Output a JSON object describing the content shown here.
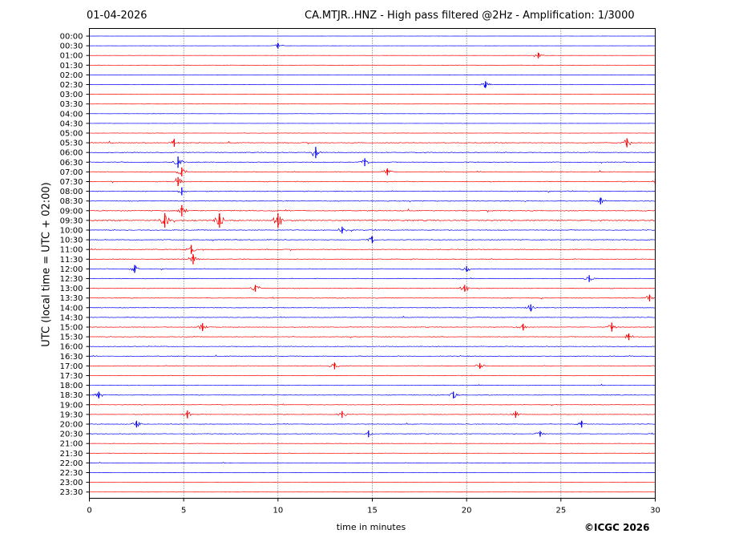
{
  "header": {
    "date": "01-04-2026",
    "title": "CA.MTJR..HNZ - High pass filtered @2Hz - Amplification: 1/3000"
  },
  "footer": {
    "copyright": "©ICGC 2026"
  },
  "colors": {
    "blue": "#0000ff",
    "red": "#ff0000",
    "frame": "#000000",
    "grid": "#000000",
    "background": "#ffffff"
  },
  "chart_data": {
    "type": "line",
    "xlabel": "time in minutes",
    "ylabel": "UTC (local time = UTC + 02:00)",
    "xlim": [
      0,
      30
    ],
    "xticks": [
      0,
      5,
      10,
      15,
      20,
      25,
      30
    ],
    "vertical_gridlines_at": [
      5,
      10,
      15,
      20,
      25
    ],
    "grid": "vertical dotted",
    "trace_colors_cycle": [
      "blue",
      "blue",
      "red",
      "red"
    ],
    "rows": [
      "00:00",
      "00:30",
      "01:00",
      "01:30",
      "02:00",
      "02:30",
      "03:00",
      "03:30",
      "04:00",
      "04:30",
      "05:00",
      "05:30",
      "06:00",
      "06:30",
      "07:00",
      "07:30",
      "08:00",
      "08:30",
      "09:00",
      "09:30",
      "10:00",
      "10:30",
      "11:00",
      "11:30",
      "12:00",
      "12:30",
      "13:00",
      "13:30",
      "14:00",
      "14:30",
      "15:00",
      "15:30",
      "16:00",
      "16:30",
      "17:00",
      "17:30",
      "18:00",
      "18:30",
      "19:00",
      "19:30",
      "20:00",
      "20:30",
      "21:00",
      "21:30",
      "22:00",
      "22:30",
      "23:00",
      "23:30"
    ],
    "trace_activity": [
      0.1,
      0.15,
      0.15,
      0.2,
      0.2,
      0.3,
      0.15,
      0.2,
      0.2,
      0.2,
      0.3,
      0.6,
      0.6,
      0.6,
      0.6,
      0.6,
      0.6,
      0.6,
      0.7,
      1.0,
      0.6,
      0.6,
      0.6,
      0.6,
      0.5,
      0.5,
      0.5,
      0.5,
      0.5,
      0.5,
      0.5,
      0.5,
      0.5,
      0.5,
      0.5,
      0.5,
      0.45,
      0.45,
      0.45,
      0.45,
      0.45,
      0.45,
      0.3,
      0.3,
      0.3,
      0.3,
      0.15,
      0.15
    ],
    "events": [
      {
        "row": "00:30",
        "minute": 10.0,
        "amp": 0.5
      },
      {
        "row": "01:00",
        "minute": 23.8,
        "amp": 0.5
      },
      {
        "row": "02:30",
        "minute": 21.0,
        "amp": 0.6
      },
      {
        "row": "05:30",
        "minute": 4.5,
        "amp": 0.7
      },
      {
        "row": "05:30",
        "minute": 28.5,
        "amp": 0.8
      },
      {
        "row": "06:00",
        "minute": 12.0,
        "amp": 1.0
      },
      {
        "row": "06:30",
        "minute": 4.7,
        "amp": 1.0
      },
      {
        "row": "06:30",
        "minute": 14.6,
        "amp": 0.7
      },
      {
        "row": "07:00",
        "minute": 4.9,
        "amp": 0.8
      },
      {
        "row": "07:00",
        "minute": 15.8,
        "amp": 0.6
      },
      {
        "row": "07:30",
        "minute": 4.7,
        "amp": 0.8
      },
      {
        "row": "07:30",
        "minute": 30.0,
        "amp": 0.5
      },
      {
        "row": "08:00",
        "minute": 4.9,
        "amp": 0.7
      },
      {
        "row": "08:30",
        "minute": 27.1,
        "amp": 0.6
      },
      {
        "row": "09:00",
        "minute": 4.9,
        "amp": 1.0
      },
      {
        "row": "09:30",
        "minute": 4.0,
        "amp": 1.3
      },
      {
        "row": "09:30",
        "minute": 6.9,
        "amp": 1.5
      },
      {
        "row": "09:30",
        "minute": 10.0,
        "amp": 1.3
      },
      {
        "row": "10:00",
        "minute": 13.4,
        "amp": 0.6
      },
      {
        "row": "10:30",
        "minute": 15.0,
        "amp": 0.6
      },
      {
        "row": "11:00",
        "minute": 5.4,
        "amp": 0.8
      },
      {
        "row": "11:30",
        "minute": 5.5,
        "amp": 0.9
      },
      {
        "row": "12:00",
        "minute": 2.4,
        "amp": 0.7
      },
      {
        "row": "12:00",
        "minute": 20.0,
        "amp": 0.5
      },
      {
        "row": "12:30",
        "minute": 26.5,
        "amp": 0.6
      },
      {
        "row": "13:00",
        "minute": 8.8,
        "amp": 0.6
      },
      {
        "row": "13:00",
        "minute": 19.9,
        "amp": 0.6
      },
      {
        "row": "13:30",
        "minute": 29.7,
        "amp": 0.6
      },
      {
        "row": "14:00",
        "minute": 23.4,
        "amp": 0.6
      },
      {
        "row": "15:00",
        "minute": 6.0,
        "amp": 0.7
      },
      {
        "row": "15:00",
        "minute": 23.0,
        "amp": 0.6
      },
      {
        "row": "15:00",
        "minute": 27.7,
        "amp": 0.8
      },
      {
        "row": "15:30",
        "minute": 28.6,
        "amp": 0.6
      },
      {
        "row": "17:00",
        "minute": 13.0,
        "amp": 0.6
      },
      {
        "row": "17:00",
        "minute": 20.7,
        "amp": 0.5
      },
      {
        "row": "18:30",
        "minute": 0.5,
        "amp": 0.6
      },
      {
        "row": "18:30",
        "minute": 19.3,
        "amp": 0.6
      },
      {
        "row": "19:30",
        "minute": 5.2,
        "amp": 0.7
      },
      {
        "row": "19:30",
        "minute": 13.4,
        "amp": 0.6
      },
      {
        "row": "19:30",
        "minute": 22.6,
        "amp": 0.6
      },
      {
        "row": "20:00",
        "minute": 2.5,
        "amp": 0.6
      },
      {
        "row": "20:00",
        "minute": 26.1,
        "amp": 0.6
      },
      {
        "row": "20:30",
        "minute": 14.8,
        "amp": 0.6
      },
      {
        "row": "20:30",
        "minute": 23.9,
        "amp": 0.5
      }
    ]
  }
}
